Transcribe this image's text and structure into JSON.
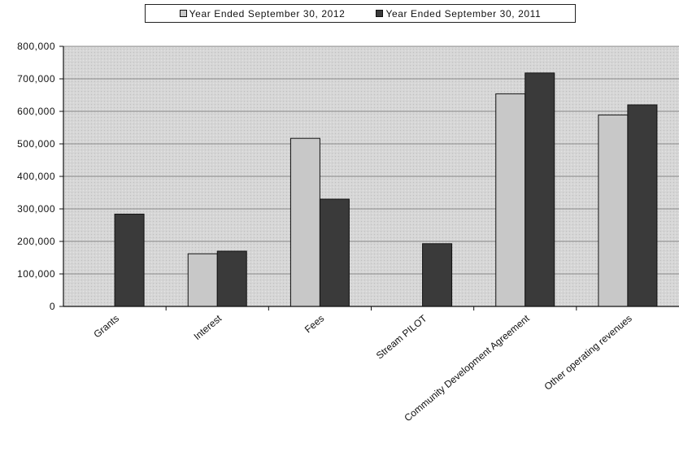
{
  "chart_data": {
    "type": "bar",
    "title": "",
    "xlabel": "",
    "ylabel": "",
    "categories": [
      "Grants",
      "Interest",
      "Fees",
      "Stream PILOT",
      "Community Development Agreement",
      "Other operating revenues"
    ],
    "series": [
      {
        "name": "Year Ended September 30, 2012",
        "color": "#c8c8c8",
        "values": [
          0,
          162000,
          517000,
          0,
          654000,
          589000
        ]
      },
      {
        "name": "Year Ended September 30, 2011",
        "color": "#3a3a3a",
        "values": [
          284000,
          170000,
          330000,
          193000,
          718000,
          620000
        ]
      }
    ],
    "ylim": [
      0,
      800000
    ],
    "yticks": [
      0,
      100000,
      200000,
      300000,
      400000,
      500000,
      600000,
      700000,
      800000
    ],
    "ytick_labels": [
      "0",
      "100,000",
      "200,000",
      "300,000",
      "400,000",
      "500,000",
      "600,000",
      "700,000",
      "800,000"
    ],
    "grid": true,
    "legend_position": "top",
    "plot_background": "#d6d6d6"
  }
}
